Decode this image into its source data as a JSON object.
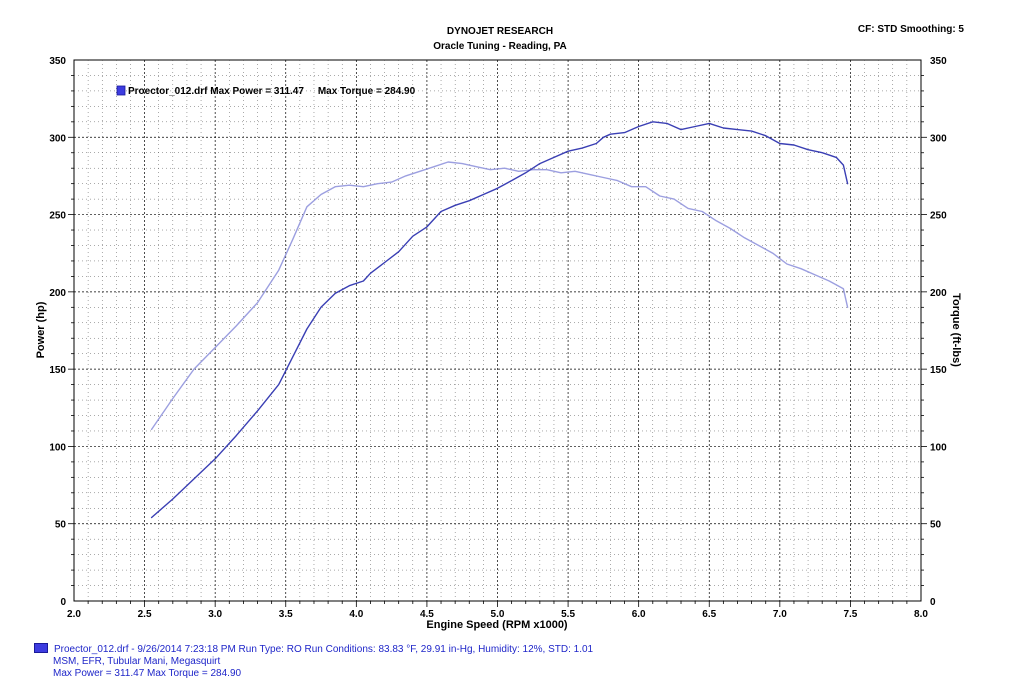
{
  "header": {
    "title": "DYNOJET RESEARCH",
    "subtitle": "Oracle Tuning - Reading, PA",
    "cf_smoothing": "CF: STD  Smoothing: 5"
  },
  "colors": {
    "power": "#3a3fb4",
    "torque": "#9c9fe0",
    "legend_swatch": "#3d3ce0",
    "footer_text": "#1f26c9"
  },
  "legend": {
    "text": "Proector_012.drf Max Power = 311.47     Max Torque = 284.90"
  },
  "footer": {
    "line1": "Proector_012.drf - 9/26/2014 7:23:18 PM  Run Type: RO  Run Conditions: 83.83 °F, 29.91 in-Hg,  Humidity:  12%, STD: 1.01",
    "line2": "MSM, EFR, Tubular Mani, Megasquirt",
    "line3": "Max Power = 311.47  Max Torque = 284.90"
  },
  "chart_data": {
    "type": "line",
    "title": "DYNOJET RESEARCH",
    "subtitle": "Oracle Tuning - Reading, PA",
    "xlabel": "Engine Speed (RPM x1000)",
    "ylabel": "Power (hp)",
    "y2label": "Torque (ft-lbs)",
    "xlim": [
      2.0,
      8.0
    ],
    "ylim": [
      0,
      350
    ],
    "y2lim": [
      0,
      350
    ],
    "x_ticks": [
      "2.0",
      "2.5",
      "3.0",
      "3.5",
      "4.0",
      "4.5",
      "5.0",
      "5.5",
      "6.0",
      "6.5",
      "7.0",
      "7.5",
      "8.0"
    ],
    "y_ticks": [
      "0",
      "50",
      "100",
      "150",
      "200",
      "250",
      "300",
      "350"
    ],
    "y2_ticks": [
      "0",
      "50",
      "100",
      "150",
      "200",
      "250",
      "300",
      "350"
    ],
    "grid": true,
    "legend_position": "top-left",
    "series": [
      {
        "name": "Power",
        "color": "#3a3fb4",
        "x": [
          2.55,
          2.7,
          2.85,
          3.0,
          3.15,
          3.3,
          3.45,
          3.55,
          3.65,
          3.75,
          3.85,
          3.95,
          4.05,
          4.1,
          4.2,
          4.3,
          4.4,
          4.5,
          4.6,
          4.7,
          4.8,
          4.9,
          5.0,
          5.1,
          5.2,
          5.3,
          5.4,
          5.5,
          5.6,
          5.7,
          5.75,
          5.8,
          5.9,
          6.0,
          6.1,
          6.2,
          6.3,
          6.4,
          6.5,
          6.6,
          6.7,
          6.8,
          6.9,
          7.0,
          7.1,
          7.2,
          7.3,
          7.4,
          7.45,
          7.48
        ],
        "y": [
          54,
          66,
          79,
          92,
          107,
          123,
          140,
          158,
          176,
          190,
          199,
          204,
          207,
          212,
          219,
          226,
          236,
          242,
          252,
          256,
          259,
          263,
          267,
          272,
          277,
          283,
          287,
          291,
          293,
          296,
          300,
          302,
          303,
          307,
          310,
          309,
          305,
          307,
          309,
          306,
          305,
          304,
          301,
          296,
          295,
          292,
          290,
          287,
          282,
          270
        ]
      },
      {
        "name": "Torque",
        "color": "#9c9fe0",
        "x": [
          2.55,
          2.7,
          2.85,
          3.0,
          3.15,
          3.3,
          3.45,
          3.55,
          3.65,
          3.75,
          3.85,
          3.95,
          4.05,
          4.15,
          4.25,
          4.35,
          4.45,
          4.55,
          4.65,
          4.75,
          4.85,
          4.95,
          5.05,
          5.15,
          5.25,
          5.35,
          5.45,
          5.55,
          5.65,
          5.75,
          5.85,
          5.95,
          6.05,
          6.15,
          6.25,
          6.35,
          6.45,
          6.55,
          6.65,
          6.75,
          6.85,
          6.95,
          7.05,
          7.15,
          7.25,
          7.35,
          7.45,
          7.48
        ],
        "y": [
          111,
          131,
          150,
          164,
          178,
          193,
          214,
          234,
          255,
          263,
          268,
          269,
          268,
          270,
          271,
          275,
          278,
          281,
          284,
          283,
          281,
          279,
          280,
          278,
          279,
          279,
          277,
          278,
          276,
          274,
          272,
          268,
          268,
          262,
          260,
          254,
          252,
          246,
          241,
          235,
          230,
          225,
          218,
          215,
          211,
          207,
          202,
          190
        ]
      }
    ]
  }
}
